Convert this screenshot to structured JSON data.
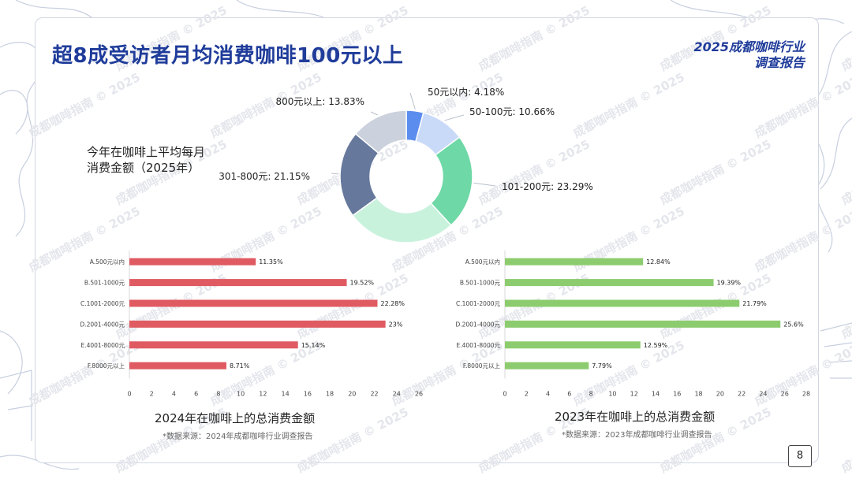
{
  "header": {
    "title": "超8成受访者月均消费咖啡100元以上",
    "brand_line1": "2025成都咖啡行业",
    "brand_line2": "调查报告"
  },
  "pie_caption": {
    "line1": "今年在咖啡上平均每月",
    "line2": "消费金额（2025年）"
  },
  "page_number": "8",
  "watermark": "成都咖啡指南 © 2025",
  "colors": {
    "title": "#1f3c9a",
    "bar_2024": "#e05a62",
    "bar_2023": "#8ccc6e"
  },
  "chart_data": [
    {
      "type": "pie",
      "donut": true,
      "slices": [
        {
          "label": "50元以内: 4.18%",
          "value": 4.18,
          "color": "#5b8def"
        },
        {
          "label": "50-100元: 10.66%",
          "value": 10.66,
          "color": "#c9daf8"
        },
        {
          "label": "101-200元: 23.29%",
          "value": 23.29,
          "color": "#6ed8a6"
        },
        {
          "label": "",
          "value": 26.73,
          "color": "#c9f2dd"
        },
        {
          "label": "301-800元: 21.15%",
          "value": 21.15,
          "color": "#66789c"
        },
        {
          "label": "800元以上: 13.83%",
          "value": 13.83,
          "color": "#ccd2dd"
        }
      ]
    },
    {
      "type": "bar",
      "orientation": "horizontal",
      "title": "2024年在咖啡上的总消费金额",
      "source": "*数据来源：2024年成都咖啡行业调查报告",
      "categories": [
        "A.500元以内",
        "B.501-1000元",
        "C.1001-2000元",
        "D.2001-4000元",
        "E.4001-8000元",
        "F.8000元以上"
      ],
      "values": [
        11.35,
        19.52,
        22.28,
        23,
        15.14,
        8.71
      ],
      "value_labels": [
        "11.35%",
        "19.52%",
        "22.28%",
        "23%",
        "15.14%",
        "8.71%"
      ],
      "xlim": [
        0,
        26
      ],
      "ticks": [
        "0",
        "2",
        "4",
        "6",
        "8",
        "10",
        "12",
        "14",
        "16",
        "18",
        "20",
        "22",
        "24",
        "26"
      ]
    },
    {
      "type": "bar",
      "orientation": "horizontal",
      "title": "2023年在咖啡上的总消费金额",
      "source": "*数据来源：2023年成都咖啡行业调查报告",
      "categories": [
        "A.500元以内",
        "B.501-1000元",
        "C.1001-2000元",
        "D.2001-4000元",
        "E.4001-8000元",
        "F.8000元以上"
      ],
      "values": [
        12.84,
        19.39,
        21.79,
        25.6,
        12.59,
        7.79
      ],
      "value_labels": [
        "12.84%",
        "19.39%",
        "21.79%",
        "25.6%",
        "12.59%",
        "7.79%"
      ],
      "xlim": [
        0,
        28
      ],
      "ticks": [
        "0",
        "2",
        "4",
        "6",
        "8",
        "10",
        "12",
        "14",
        "16",
        "18",
        "20",
        "22",
        "24",
        "26",
        "28"
      ]
    }
  ]
}
